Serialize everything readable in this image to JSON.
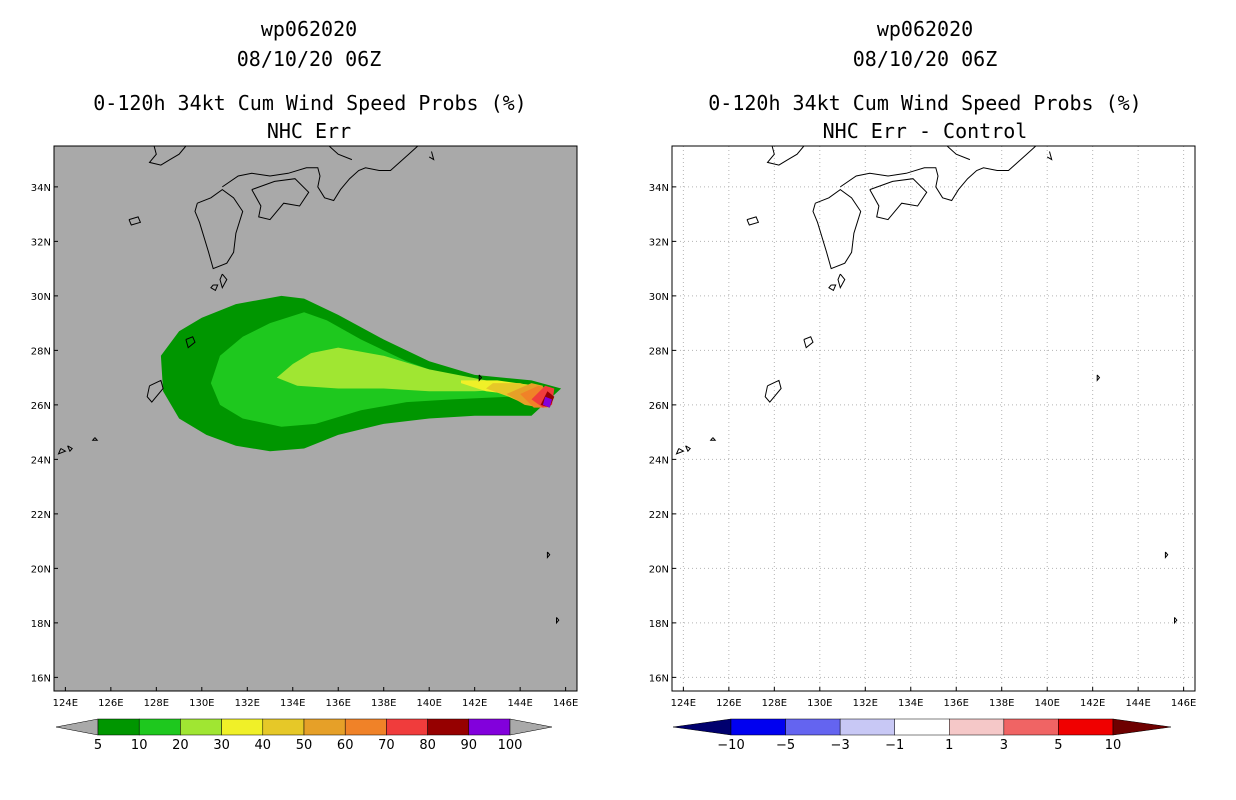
{
  "chart_data": [
    {
      "type": "heatmap",
      "panel": "left",
      "title_lines": [
        "wp062020",
        "08/10/20 06Z",
        "0-120h 34kt Cum Wind Speed Probs (%)",
        "NHC Err"
      ],
      "x_ticks": [
        "124E",
        "126E",
        "128E",
        "130E",
        "132E",
        "134E",
        "136E",
        "138E",
        "140E",
        "142E",
        "144E",
        "146E"
      ],
      "y_ticks": [
        "34N",
        "32N",
        "30N",
        "28N",
        "26N",
        "24N",
        "22N",
        "20N",
        "18N",
        "16N"
      ],
      "xlim": [
        123.5,
        146.5
      ],
      "ylim": [
        15.5,
        35.5
      ],
      "background_color": "#a9a9a9",
      "colorbar": {
        "labels": [
          "5",
          "10",
          "20",
          "30",
          "40",
          "50",
          "60",
          "70",
          "80",
          "90",
          "100"
        ],
        "colors": [
          "#009600",
          "#1ec81e",
          "#a0e632",
          "#f0f028",
          "#e6c828",
          "#e6a028",
          "#f08228",
          "#f03c3c",
          "#960000",
          "#8200dc"
        ]
      },
      "contours": [
        {
          "level": "5-10",
          "lon": [
            133.5,
            131.5,
            130.0,
            129.0,
            128.2,
            128.3,
            129.0,
            130.2,
            131.5,
            133.0,
            134.5,
            136.0,
            138.0,
            140.0,
            142.0,
            144.5,
            145.8,
            144.5,
            142.0,
            140.0,
            138.0,
            136.0,
            134.5
          ],
          "lat": [
            30.0,
            29.7,
            29.2,
            28.7,
            27.8,
            26.5,
            25.5,
            24.9,
            24.5,
            24.3,
            24.4,
            24.9,
            25.3,
            25.5,
            25.6,
            25.6,
            26.6,
            26.9,
            27.1,
            27.6,
            28.4,
            29.3,
            29.9
          ]
        },
        {
          "level": "10-20",
          "lon": [
            134.5,
            133.0,
            131.8,
            130.8,
            130.4,
            130.8,
            131.8,
            133.5,
            135.0,
            137.0,
            139.0,
            141.0,
            143.5,
            145.0,
            143.5,
            141.0,
            139.0,
            137.0,
            135.5
          ],
          "lat": [
            29.4,
            29.0,
            28.5,
            27.8,
            26.8,
            26.0,
            25.5,
            25.2,
            25.3,
            25.8,
            26.1,
            26.2,
            26.3,
            26.6,
            26.8,
            27.0,
            27.6,
            28.4,
            29.1
          ]
        },
        {
          "level": "20-30",
          "lon": [
            134.0,
            133.3,
            134.2,
            136.0,
            138.0,
            140.0,
            142.0,
            144.5,
            142.5,
            140.0,
            138.0,
            136.0,
            134.8
          ],
          "lat": [
            27.5,
            27.0,
            26.7,
            26.6,
            26.6,
            26.5,
            26.5,
            26.6,
            26.9,
            27.3,
            27.8,
            28.1,
            27.9
          ]
        },
        {
          "level": "30-40",
          "lon": [
            141.4,
            142.5,
            143.5,
            144.2,
            144.7,
            143.0,
            141.4
          ],
          "lat": [
            26.8,
            26.5,
            26.4,
            26.3,
            26.7,
            26.9,
            26.9
          ]
        },
        {
          "level": "40-50",
          "lon": [
            142.5,
            143.5,
            144.3,
            144.7,
            144.0,
            142.8
          ],
          "lat": [
            26.6,
            26.3,
            26.0,
            26.6,
            26.8,
            26.8
          ]
        },
        {
          "level": "50-60",
          "lon": [
            143.4,
            144.2,
            144.9,
            145.0,
            144.5
          ],
          "lat": [
            26.4,
            26.0,
            25.9,
            26.7,
            26.8
          ]
        },
        {
          "level": "60-70",
          "lon": [
            144.0,
            144.6,
            145.2,
            145.2,
            144.8
          ],
          "lat": [
            26.4,
            25.9,
            25.9,
            26.6,
            26.7
          ]
        },
        {
          "level": "70-80",
          "lon": [
            144.5,
            145.0,
            145.4,
            145.5,
            145.1
          ],
          "lat": [
            26.2,
            25.9,
            26.0,
            26.6,
            26.7
          ]
        },
        {
          "level": "80-90",
          "lon": [
            144.9,
            145.3,
            145.5,
            145.2
          ],
          "lat": [
            26.0,
            25.9,
            26.3,
            26.5
          ]
        },
        {
          "level": "90-100",
          "lon": [
            145.0,
            145.3,
            145.4,
            145.1
          ],
          "lat": [
            26.0,
            25.9,
            26.2,
            26.3
          ]
        }
      ]
    },
    {
      "type": "heatmap",
      "panel": "right",
      "title_lines": [
        "wp062020",
        "08/10/20 06Z",
        "0-120h 34kt Cum Wind Speed Probs (%)",
        "NHC Err - Control"
      ],
      "x_ticks": [
        "124E",
        "126E",
        "128E",
        "130E",
        "132E",
        "134E",
        "136E",
        "138E",
        "140E",
        "142E",
        "144E",
        "146E"
      ],
      "y_ticks": [
        "34N",
        "32N",
        "30N",
        "28N",
        "26N",
        "24N",
        "22N",
        "20N",
        "18N",
        "16N"
      ],
      "xlim": [
        123.5,
        146.5
      ],
      "ylim": [
        15.5,
        35.5
      ],
      "grid": true,
      "background_color": "#ffffff",
      "colorbar": {
        "labels": [
          "-10",
          "-5",
          "-3",
          "-1",
          "1",
          "3",
          "5",
          "10"
        ],
        "colors": [
          "#00006e",
          "#0000f0",
          "#6464f0",
          "#c8c8f5",
          "#ffffff",
          "#f5c8c8",
          "#f06464",
          "#f00000",
          "#6e0000"
        ]
      }
    }
  ]
}
